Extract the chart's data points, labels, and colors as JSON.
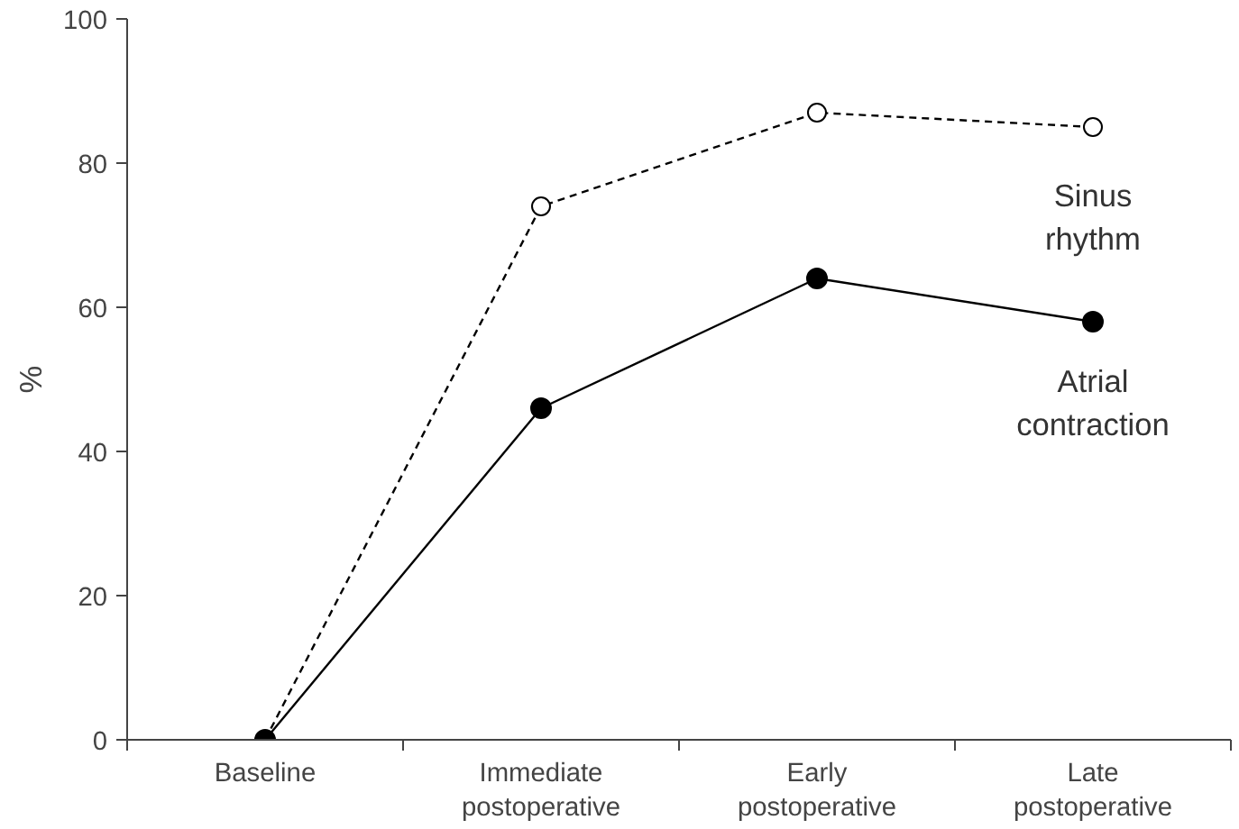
{
  "chart_data": {
    "type": "line",
    "categories": [
      "Baseline",
      "Immediate postoperative",
      "Early postoperative",
      "Late postoperative"
    ],
    "ylabel": "%",
    "ylim": [
      0,
      100
    ],
    "yticks": [
      0,
      20,
      40,
      60,
      80,
      100
    ],
    "grid": false,
    "legend": false,
    "series": [
      {
        "name": "Sinus rhythm",
        "color": "#000000",
        "values": [
          0,
          74,
          87,
          85
        ],
        "marker": "circle",
        "line_style": "dashed"
      },
      {
        "name": "Atrial contraction",
        "color": "#000000",
        "values": [
          0,
          46,
          64,
          58
        ],
        "marker": "circle",
        "line_style": "solid"
      }
    ]
  }
}
